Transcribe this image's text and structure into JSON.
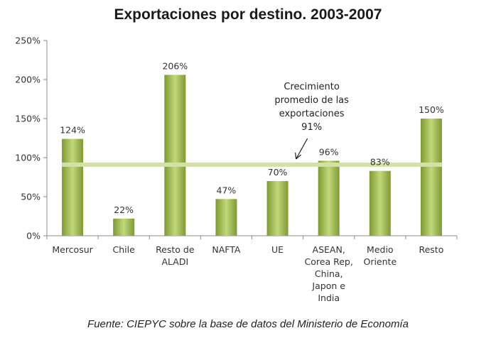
{
  "chart_data": {
    "type": "bar",
    "title": "Exportaciones por destino. 2003-2007",
    "categories": [
      [
        "Mercosur"
      ],
      [
        "Chile"
      ],
      [
        "Resto de",
        "ALADI"
      ],
      [
        "NAFTA"
      ],
      [
        "UE"
      ],
      [
        "ASEAN,",
        "Corea Rep,",
        "China,",
        "Japon e",
        "India"
      ],
      [
        "Medio",
        "Oriente"
      ],
      [
        "Resto"
      ]
    ],
    "values": [
      124,
      22,
      206,
      47,
      70,
      96,
      83,
      150
    ],
    "value_labels": [
      "124%",
      "22%",
      "206%",
      "47%",
      "70%",
      "96%",
      "83%",
      "150%"
    ],
    "ylim": [
      0,
      250
    ],
    "yticks": [
      0,
      50,
      100,
      150,
      200,
      250
    ],
    "ytick_labels": [
      "0%",
      "50%",
      "100%",
      "150%",
      "200%",
      "250%"
    ],
    "xlabel": "",
    "ylabel": "",
    "grid": false,
    "reference_line": {
      "value": 91,
      "annotation_lines": [
        "Crecimiento",
        "promedio de las",
        "exportaciones",
        "91%"
      ]
    },
    "colors": {
      "bar_light": "#c2d87a",
      "bar_dark": "#7e9a32",
      "reference_line": "#d2e1a6",
      "axis": "#8c8c8c"
    }
  },
  "source": "Fuente: CIEPYC sobre la base de datos del Ministerio de Economía"
}
